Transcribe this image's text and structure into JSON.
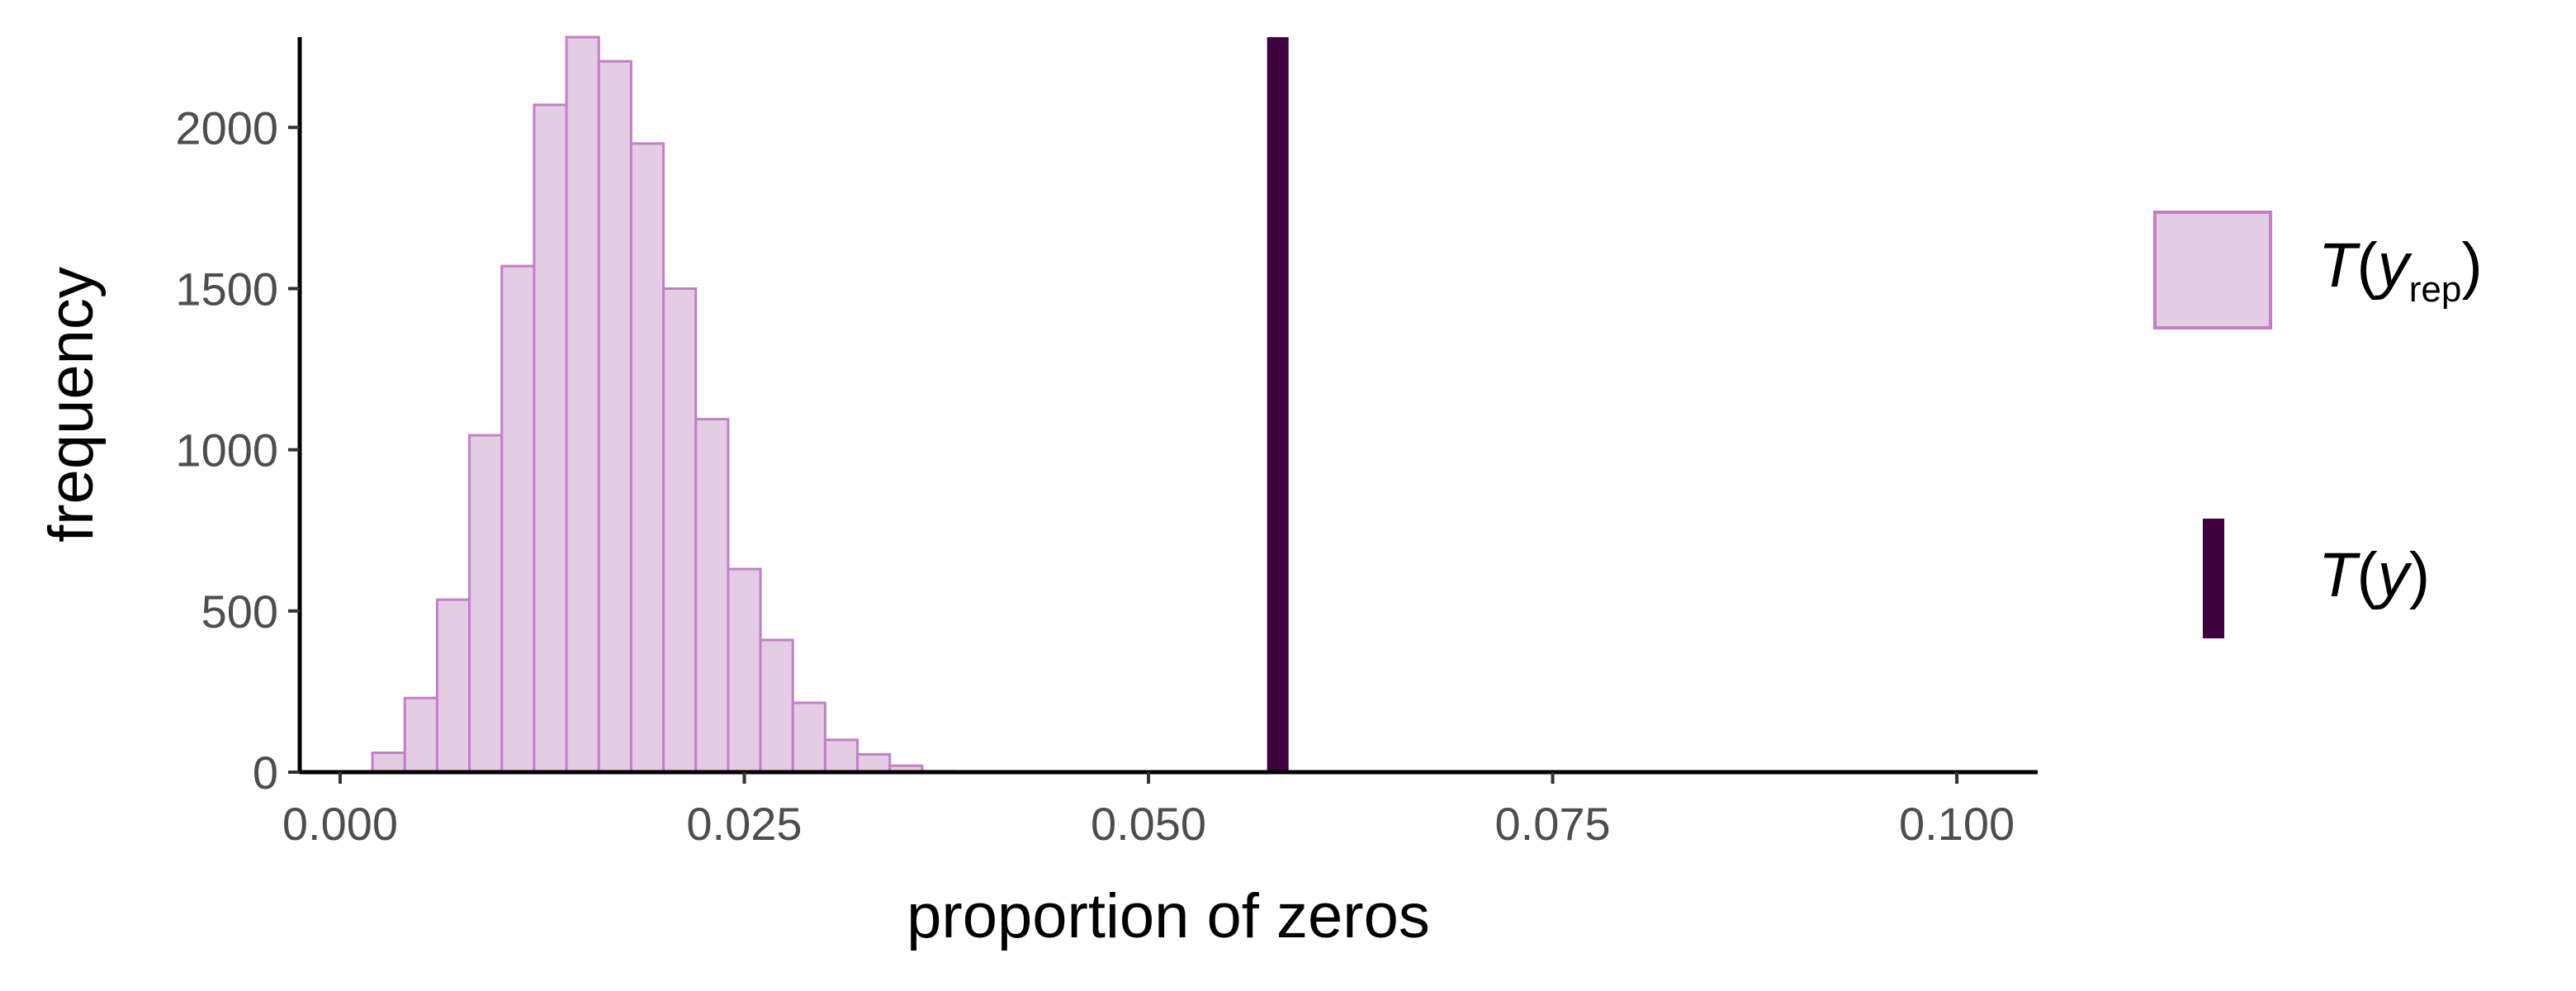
{
  "chart_data": {
    "type": "bar",
    "xlabel": "proportion of zeros",
    "ylabel": "frequency",
    "xlim": [
      -0.0025,
      0.105
    ],
    "ylim": [
      0,
      2280
    ],
    "x_ticks": [
      "0.000",
      "0.025",
      "0.050",
      "0.075",
      "0.100"
    ],
    "x_tick_values": [
      0,
      0.025,
      0.05,
      0.075,
      0.1
    ],
    "y_ticks": [
      "0",
      "500",
      "1000",
      "1500",
      "2000"
    ],
    "y_tick_values": [
      0,
      500,
      1000,
      1500,
      2000
    ],
    "grid": false,
    "legend_position": "right",
    "bin_width": 0.002,
    "bins": [
      {
        "x": 0.001,
        "count": 2
      },
      {
        "x": 0.003,
        "count": 60
      },
      {
        "x": 0.005,
        "count": 230
      },
      {
        "x": 0.007,
        "count": 535
      },
      {
        "x": 0.009,
        "count": 1045
      },
      {
        "x": 0.011,
        "count": 1570
      },
      {
        "x": 0.013,
        "count": 2070
      },
      {
        "x": 0.015,
        "count": 2280
      },
      {
        "x": 0.017,
        "count": 2205
      },
      {
        "x": 0.019,
        "count": 1950
      },
      {
        "x": 0.021,
        "count": 1500
      },
      {
        "x": 0.023,
        "count": 1095
      },
      {
        "x": 0.025,
        "count": 630
      },
      {
        "x": 0.027,
        "count": 410
      },
      {
        "x": 0.029,
        "count": 215
      },
      {
        "x": 0.031,
        "count": 100
      },
      {
        "x": 0.033,
        "count": 55
      },
      {
        "x": 0.035,
        "count": 20
      },
      {
        "x": 0.037,
        "count": 3
      }
    ],
    "observed": {
      "x": 0.058
    },
    "series": [
      {
        "name": "T(y_rep)",
        "type": "histogram",
        "fill": "#e5cce5",
        "stroke": "#c27fc6"
      },
      {
        "name": "T(y)",
        "type": "vline",
        "color": "#3f0040"
      }
    ],
    "legend": [
      {
        "main": "T",
        "sub": "rep",
        "var": "y"
      },
      {
        "main": "T",
        "sub": "",
        "var": "y"
      }
    ]
  },
  "colors": {
    "hist_fill": "#e5cce5",
    "hist_stroke": "#c27fc6",
    "observed_line": "#3f0040",
    "axis": "#000000",
    "tick_text": "#4d4d4d"
  }
}
